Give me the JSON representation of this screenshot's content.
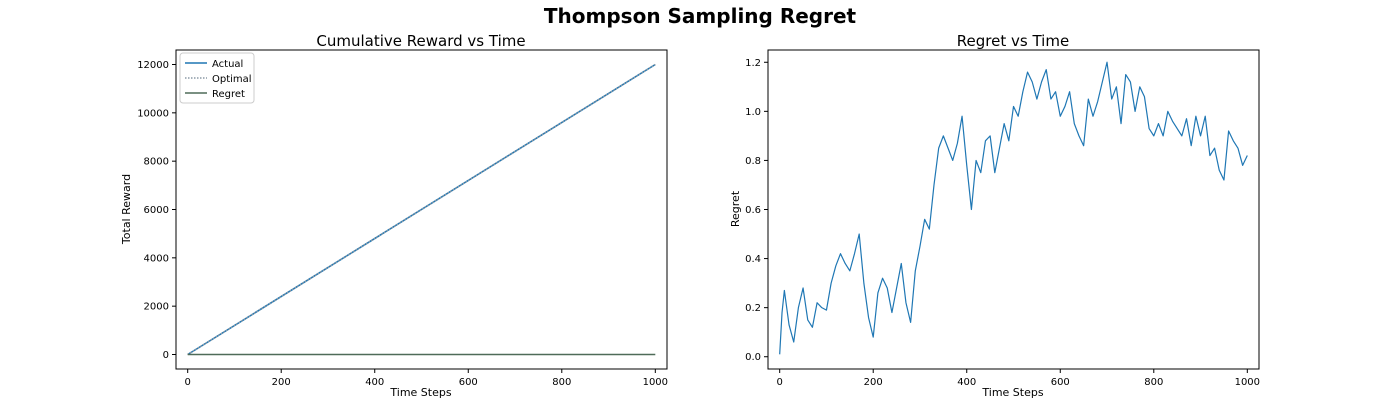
{
  "figure": {
    "title": "Thompson Sampling Regret"
  },
  "colors": {
    "actual": "#1f77b4",
    "optimal": "#8c9aa6",
    "regret": "#4f6b58",
    "regret_line": "#1f77b4",
    "spine": "#000000"
  },
  "chart_data": [
    {
      "type": "line",
      "title": "Cumulative Reward vs Time",
      "xlabel": "Time Steps",
      "ylabel": "Total Reward",
      "xlim": [
        -25,
        1025
      ],
      "ylim": [
        -600,
        12600
      ],
      "xticks": [
        0,
        200,
        400,
        600,
        800,
        1000
      ],
      "yticks": [
        0,
        2000,
        4000,
        6000,
        8000,
        10000,
        12000
      ],
      "grid": false,
      "legend": "top-left",
      "series": [
        {
          "name": "Actual",
          "style": "solid",
          "x": [
            0,
            1000
          ],
          "y": [
            0,
            12000
          ]
        },
        {
          "name": "Optimal",
          "style": "dotted",
          "x": [
            0,
            1000
          ],
          "y": [
            0,
            12000
          ]
        },
        {
          "name": "Regret",
          "style": "solid",
          "x": [
            0,
            1000
          ],
          "y": [
            0,
            0
          ]
        }
      ]
    },
    {
      "type": "line",
      "title": "Regret vs Time",
      "xlabel": "Time Steps",
      "ylabel": "Regret",
      "xlim": [
        -25,
        1025
      ],
      "ylim": [
        -0.05,
        1.25
      ],
      "xticks": [
        0,
        200,
        400,
        600,
        800,
        1000
      ],
      "yticks": [
        0.0,
        0.2,
        0.4,
        0.6,
        0.8,
        1.0,
        1.2
      ],
      "grid": false,
      "series": [
        {
          "x": [
            0,
            5,
            10,
            15,
            20,
            30,
            40,
            50,
            60,
            70,
            80,
            90,
            100,
            110,
            120,
            130,
            140,
            150,
            160,
            170,
            180,
            190,
            200,
            210,
            220,
            230,
            240,
            250,
            260,
            270,
            280,
            290,
            300,
            310,
            320,
            330,
            340,
            350,
            360,
            370,
            380,
            390,
            400,
            410,
            420,
            430,
            440,
            450,
            460,
            470,
            480,
            490,
            500,
            510,
            520,
            530,
            540,
            550,
            560,
            570,
            580,
            590,
            600,
            610,
            620,
            630,
            640,
            650,
            660,
            670,
            680,
            690,
            700,
            710,
            720,
            730,
            740,
            750,
            760,
            770,
            780,
            790,
            800,
            810,
            820,
            830,
            840,
            850,
            860,
            870,
            880,
            890,
            900,
            910,
            920,
            930,
            940,
            950,
            960,
            970,
            980,
            990,
            1000
          ],
          "y": [
            0.01,
            0.18,
            0.27,
            0.2,
            0.13,
            0.06,
            0.2,
            0.28,
            0.15,
            0.12,
            0.22,
            0.2,
            0.19,
            0.3,
            0.37,
            0.42,
            0.38,
            0.35,
            0.42,
            0.5,
            0.3,
            0.16,
            0.08,
            0.26,
            0.32,
            0.28,
            0.18,
            0.28,
            0.38,
            0.22,
            0.14,
            0.35,
            0.45,
            0.56,
            0.52,
            0.7,
            0.85,
            0.9,
            0.85,
            0.8,
            0.87,
            0.98,
            0.78,
            0.6,
            0.8,
            0.75,
            0.88,
            0.9,
            0.75,
            0.85,
            0.95,
            0.88,
            1.02,
            0.98,
            1.08,
            1.16,
            1.12,
            1.05,
            1.12,
            1.17,
            1.05,
            1.08,
            0.98,
            1.02,
            1.08,
            0.95,
            0.9,
            0.86,
            1.05,
            0.98,
            1.04,
            1.12,
            1.2,
            1.05,
            1.1,
            0.95,
            1.15,
            1.12,
            1.0,
            1.1,
            1.06,
            0.93,
            0.9,
            0.95,
            0.9,
            1.0,
            0.96,
            0.93,
            0.9,
            0.97,
            0.86,
            0.98,
            0.9,
            0.98,
            0.82,
            0.85,
            0.76,
            0.72,
            0.92,
            0.88,
            0.85,
            0.78,
            0.82
          ]
        }
      ]
    }
  ]
}
